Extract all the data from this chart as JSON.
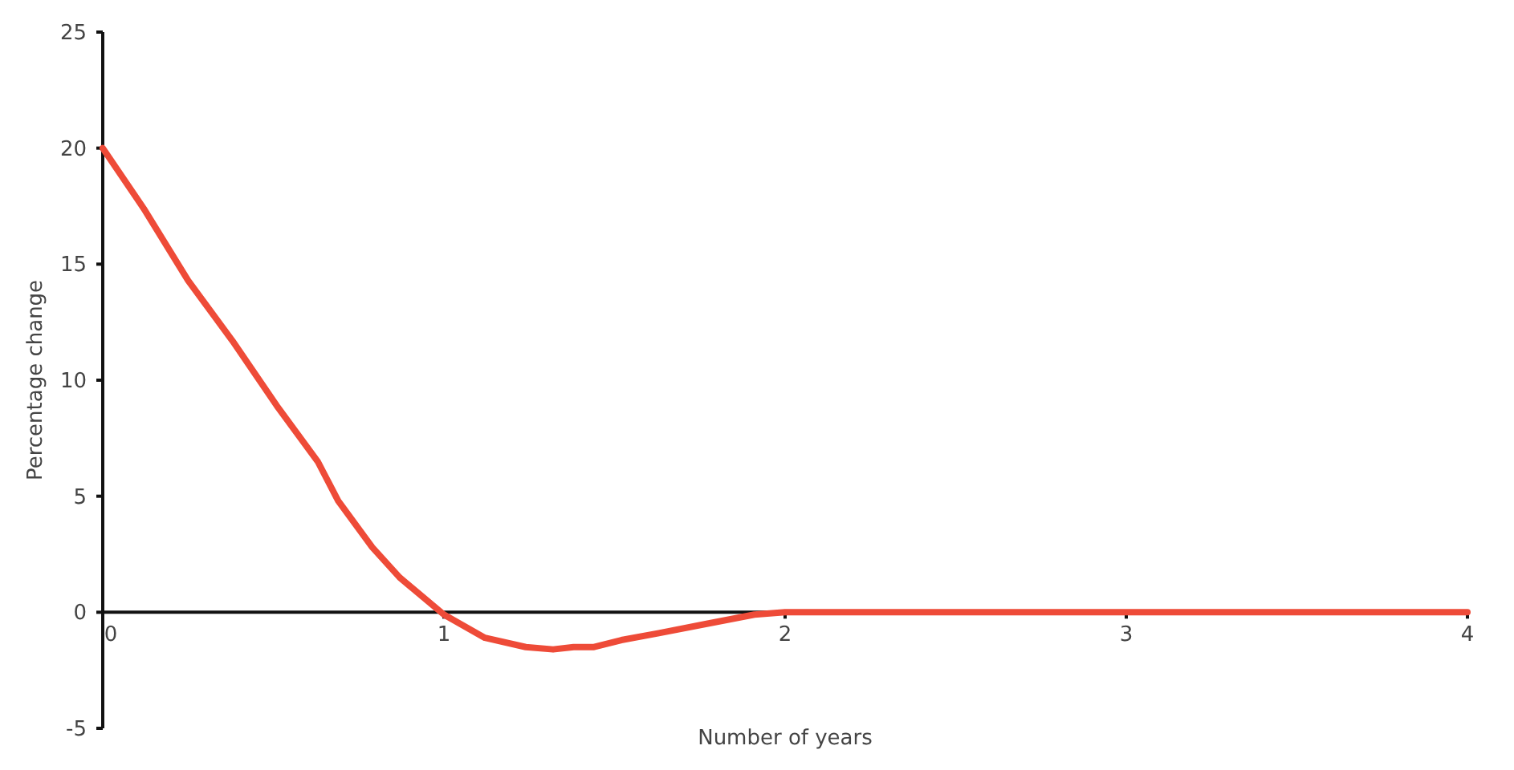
{
  "chart_data": {
    "type": "line",
    "xlabel": "Number of years",
    "ylabel": "Percentage change",
    "x": [
      0,
      0.12,
      0.25,
      0.38,
      0.51,
      0.63,
      0.69,
      0.79,
      0.87,
      1,
      1.12,
      1.24,
      1.32,
      1.38,
      1.44,
      1.52,
      1.63,
      1.77,
      1.91,
      2,
      3,
      4
    ],
    "series": [
      {
        "color": "#ee4b38",
        "values": [
          20,
          17.4,
          14.3,
          11.7,
          8.9,
          6.5,
          4.8,
          2.8,
          1.5,
          -0.1,
          -1.1,
          -1.5,
          -1.6,
          -1.5,
          -1.5,
          -1.2,
          -0.9,
          -0.5,
          -0.1,
          0,
          0,
          0
        ]
      }
    ],
    "xlim": [
      0,
      4
    ],
    "xticks": [
      0,
      1,
      2,
      3,
      4
    ],
    "ylim": [
      -5,
      25
    ],
    "yticks": [
      -5,
      0,
      5,
      10,
      15,
      20,
      25
    ],
    "grid": false,
    "marker": "none",
    "line_style": "solid"
  }
}
